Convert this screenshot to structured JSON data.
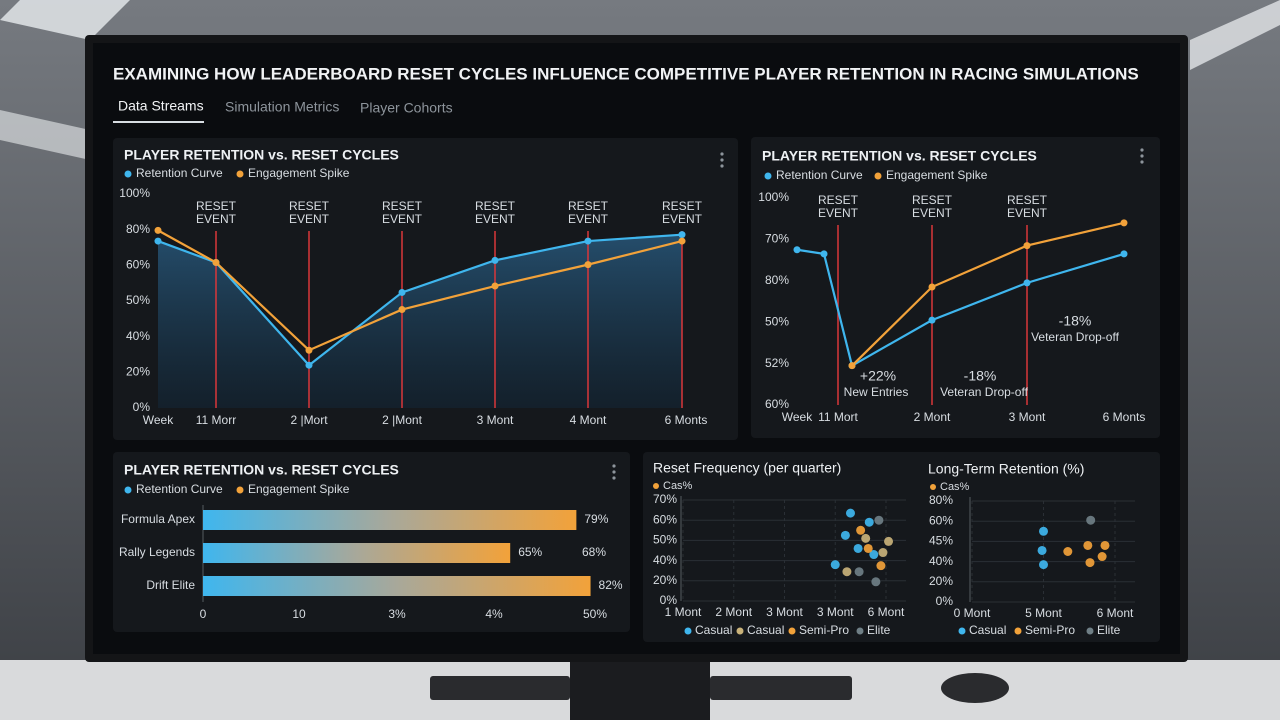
{
  "title": "EXAMINING HOW LEADERBOARD RESET CYCLES INFLUENCE COMPETITIVE PLAYER RETENTION IN RACING SIMULATIONS",
  "tabs": [
    "Data Streams",
    "Simulation Metrics",
    "Player Cohorts"
  ],
  "chart_data": [
    {
      "type": "line",
      "title": "PLAYER RETENTION vs. RESET CYCLES",
      "categories": [
        "Week",
        "11 Morr",
        "2 |Mort",
        "2 |Mont",
        "3 Mont",
        "4 Mont",
        "6 Monts"
      ],
      "y_labels": [
        "100%",
        "80%",
        "60%",
        "50%",
        "40%",
        "20%",
        "0%"
      ],
      "ylim": [
        0,
        100
      ],
      "series": [
        {
          "name": "Retention Curve",
          "color": "#3fb6ee",
          "values": [
            78,
            68,
            20,
            54,
            69,
            78,
            81
          ]
        },
        {
          "name": "Engagement Spike",
          "color": "#f2a23a",
          "values": [
            83,
            68,
            27,
            46,
            57,
            67,
            78
          ]
        }
      ],
      "reset_labels": [
        "RESET EVENT",
        "RESET EVENT",
        "RESET EVENT",
        "RESET EVENT",
        "RESET EVENT",
        "RESET EVENT"
      ]
    },
    {
      "type": "line",
      "title": "PLAYER RETENTION vs. RESET CYCLES",
      "categories": [
        "Week",
        "11 Mort",
        null,
        "2 Mont",
        "3 Mont",
        "6 Monts"
      ],
      "y_labels": [
        "100%",
        "70%",
        "80%",
        "50%",
        "52%",
        "60%"
      ],
      "ylim": [
        0,
        100
      ],
      "series": [
        {
          "name": "Retention Curve",
          "color": "#3fb6ee",
          "values": [
            75,
            73,
            19,
            41,
            59,
            73
          ]
        },
        {
          "name": "Engagement Spike",
          "color": "#f2a23a",
          "values": [
            null,
            null,
            19,
            57,
            77,
            88
          ]
        }
      ],
      "reset_labels": [
        "RESET EVENT",
        "RESET EVENT",
        "RESET EVENT"
      ],
      "annotations": [
        "+22%",
        "New Entries",
        "-18%",
        "Veteran Drop-off",
        "-18%",
        "Veteran Drop-off"
      ]
    },
    {
      "type": "hbar",
      "title": "PLAYER RETENTION vs. RESET CYCLES",
      "legend": [
        {
          "name": "Retention Curve",
          "color": "#3fb6ee"
        },
        {
          "name": "Engagement Spike",
          "color": "#f2a23a"
        }
      ],
      "categories": [
        "Formula Apex",
        "Rally Legends",
        "Drift Elite"
      ],
      "values": [
        79,
        65,
        82
      ],
      "value_labels": [
        "79%",
        "65%",
        "82%"
      ],
      "annotations": [
        "68%"
      ],
      "x_labels": [
        "0",
        "10",
        "3%",
        "4%",
        "50%"
      ],
      "xlim": [
        0,
        84
      ]
    },
    {
      "type": "scatter",
      "title": "Reset Frequency (per quarter)",
      "legend_top": "Cas%",
      "x_labels": [
        "1 Mont",
        "2 Mont",
        "3 Mont",
        "3 Mont",
        "6 Mont"
      ],
      "xlim": [
        0,
        4
      ],
      "y_labels": [
        "70%",
        "60%",
        "50%",
        "40%",
        "20%",
        "0%"
      ],
      "ylim": [
        0,
        100
      ],
      "series": [
        {
          "name": "Casual",
          "color": "#3fb6ee",
          "x": [
            3.3,
            3.67,
            3.2,
            3.45,
            3.0,
            3.76
          ],
          "y": [
            87,
            78,
            65,
            52,
            36,
            46
          ]
        },
        {
          "name": "Casual",
          "color": "#c9b27a",
          "x": [
            3.6,
            3.94,
            3.23,
            4.05
          ],
          "y": [
            62,
            48,
            29,
            59
          ]
        },
        {
          "name": "Semi-Pro",
          "color": "#f2a23a",
          "x": [
            3.5,
            3.9,
            3.65
          ],
          "y": [
            70,
            35,
            52
          ]
        },
        {
          "name": "Elite",
          "color": "#6f7f86",
          "x": [
            3.47,
            3.8,
            3.86
          ],
          "y": [
            29,
            19,
            80
          ]
        }
      ]
    },
    {
      "type": "scatter",
      "title": "Long-Term Retention (%)",
      "legend_top": "Cas%",
      "x_labels": [
        "0 Mont",
        "5 Mont",
        "6 Mont"
      ],
      "xlim": [
        0,
        2
      ],
      "y_labels": [
        "80%",
        "60%",
        "45%",
        "40%",
        "20%",
        "0%"
      ],
      "ylim": [
        0,
        100
      ],
      "series": [
        {
          "name": "Casual",
          "color": "#3fb6ee",
          "x": [
            1.0,
            0.98,
            1.0
          ],
          "y": [
            70,
            51,
            37
          ]
        },
        {
          "name": "Semi-Pro",
          "color": "#f2a23a",
          "x": [
            1.34,
            1.62,
            1.86,
            1.82,
            1.65
          ],
          "y": [
            50,
            56,
            56,
            45,
            39
          ]
        },
        {
          "name": "Elite",
          "color": "#6f7f86",
          "x": [
            1.66
          ],
          "y": [
            81
          ]
        }
      ]
    }
  ]
}
